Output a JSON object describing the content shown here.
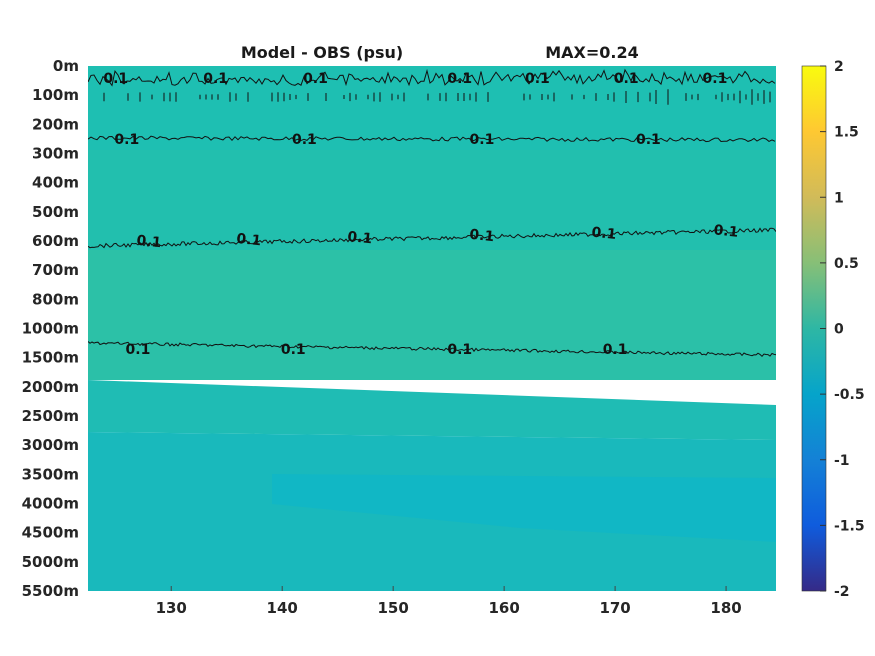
{
  "chart_data": {
    "type": "heatmap",
    "title": "Model - OBS (psu)",
    "annotation": "MAX=0.24",
    "xlabel": "",
    "ylabel": "",
    "xlim": [
      122.5,
      184.5
    ],
    "x_ticks": [
      130,
      140,
      150,
      160,
      170,
      180
    ],
    "y_ticks": [
      "0m",
      "100m",
      "200m",
      "300m",
      "400m",
      "500m",
      "600m",
      "700m",
      "800m",
      "1000m",
      "1500m",
      "2000m",
      "2500m",
      "3000m",
      "3500m",
      "4000m",
      "4500m",
      "5000m",
      "5500m"
    ],
    "y_direction": "depth increasing downward",
    "colorbar": {
      "range": [
        -2,
        2
      ],
      "ticks": [
        -2,
        -1.5,
        -1,
        -0.5,
        0,
        0.5,
        1,
        1.5,
        2
      ],
      "colormap": "parula"
    },
    "contours": [
      {
        "level": 0.1,
        "depth": "0-100m",
        "label_x": [
          125,
          134,
          143,
          156,
          163,
          171,
          179
        ]
      },
      {
        "level": 0.1,
        "depth": "200-300m",
        "label_x": [
          126,
          142,
          158,
          173
        ]
      },
      {
        "level": 0.1,
        "depth": "600m",
        "label_x": [
          128,
          137,
          147,
          158,
          169,
          180
        ]
      },
      {
        "level": 0.1,
        "depth": "1000-1500m",
        "label_x": [
          127,
          141,
          156,
          170
        ]
      }
    ],
    "contour_label_text": "0.1",
    "field_colors": {
      "near_surface": "#1ebfb2",
      "mid_depth": "#2fc0a5",
      "deep": "#19b9bd",
      "deepest": "#13b8c7"
    }
  }
}
